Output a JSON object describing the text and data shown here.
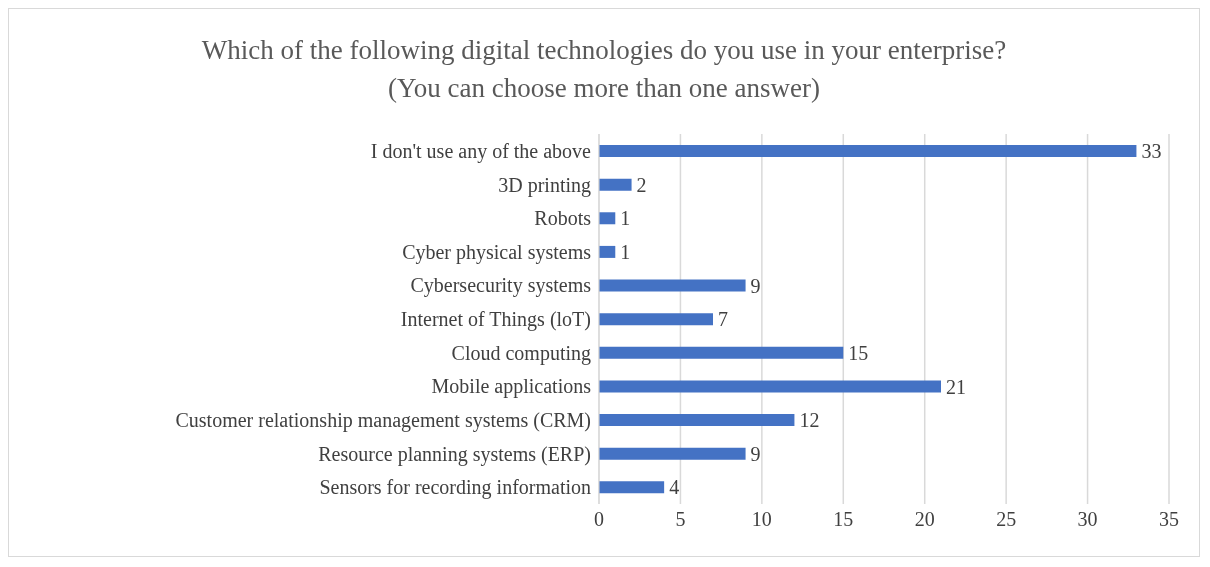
{
  "chart_data": {
    "type": "bar",
    "orientation": "horizontal",
    "title": "Which of the following digital technologies do you use in your enterprise? (You can choose more than one answer)",
    "categories": [
      "I don't use any of the above",
      "3D printing",
      "Robots",
      "Cyber physical systems",
      "Cybersecurity systems",
      "Internet of Things (loT)",
      "Cloud computing",
      "Mobile applications",
      "Customer relationship management systems (CRM)",
      "Resource planning systems (ERP)",
      "Sensors for recording information"
    ],
    "values": [
      33,
      2,
      1,
      1,
      9,
      7,
      15,
      21,
      12,
      9,
      4
    ],
    "color": "#4472c4",
    "xlim": [
      0,
      35
    ],
    "xticks": [
      0,
      5,
      10,
      15,
      20,
      25,
      30,
      35
    ],
    "grid": "x",
    "data_labels": true
  }
}
